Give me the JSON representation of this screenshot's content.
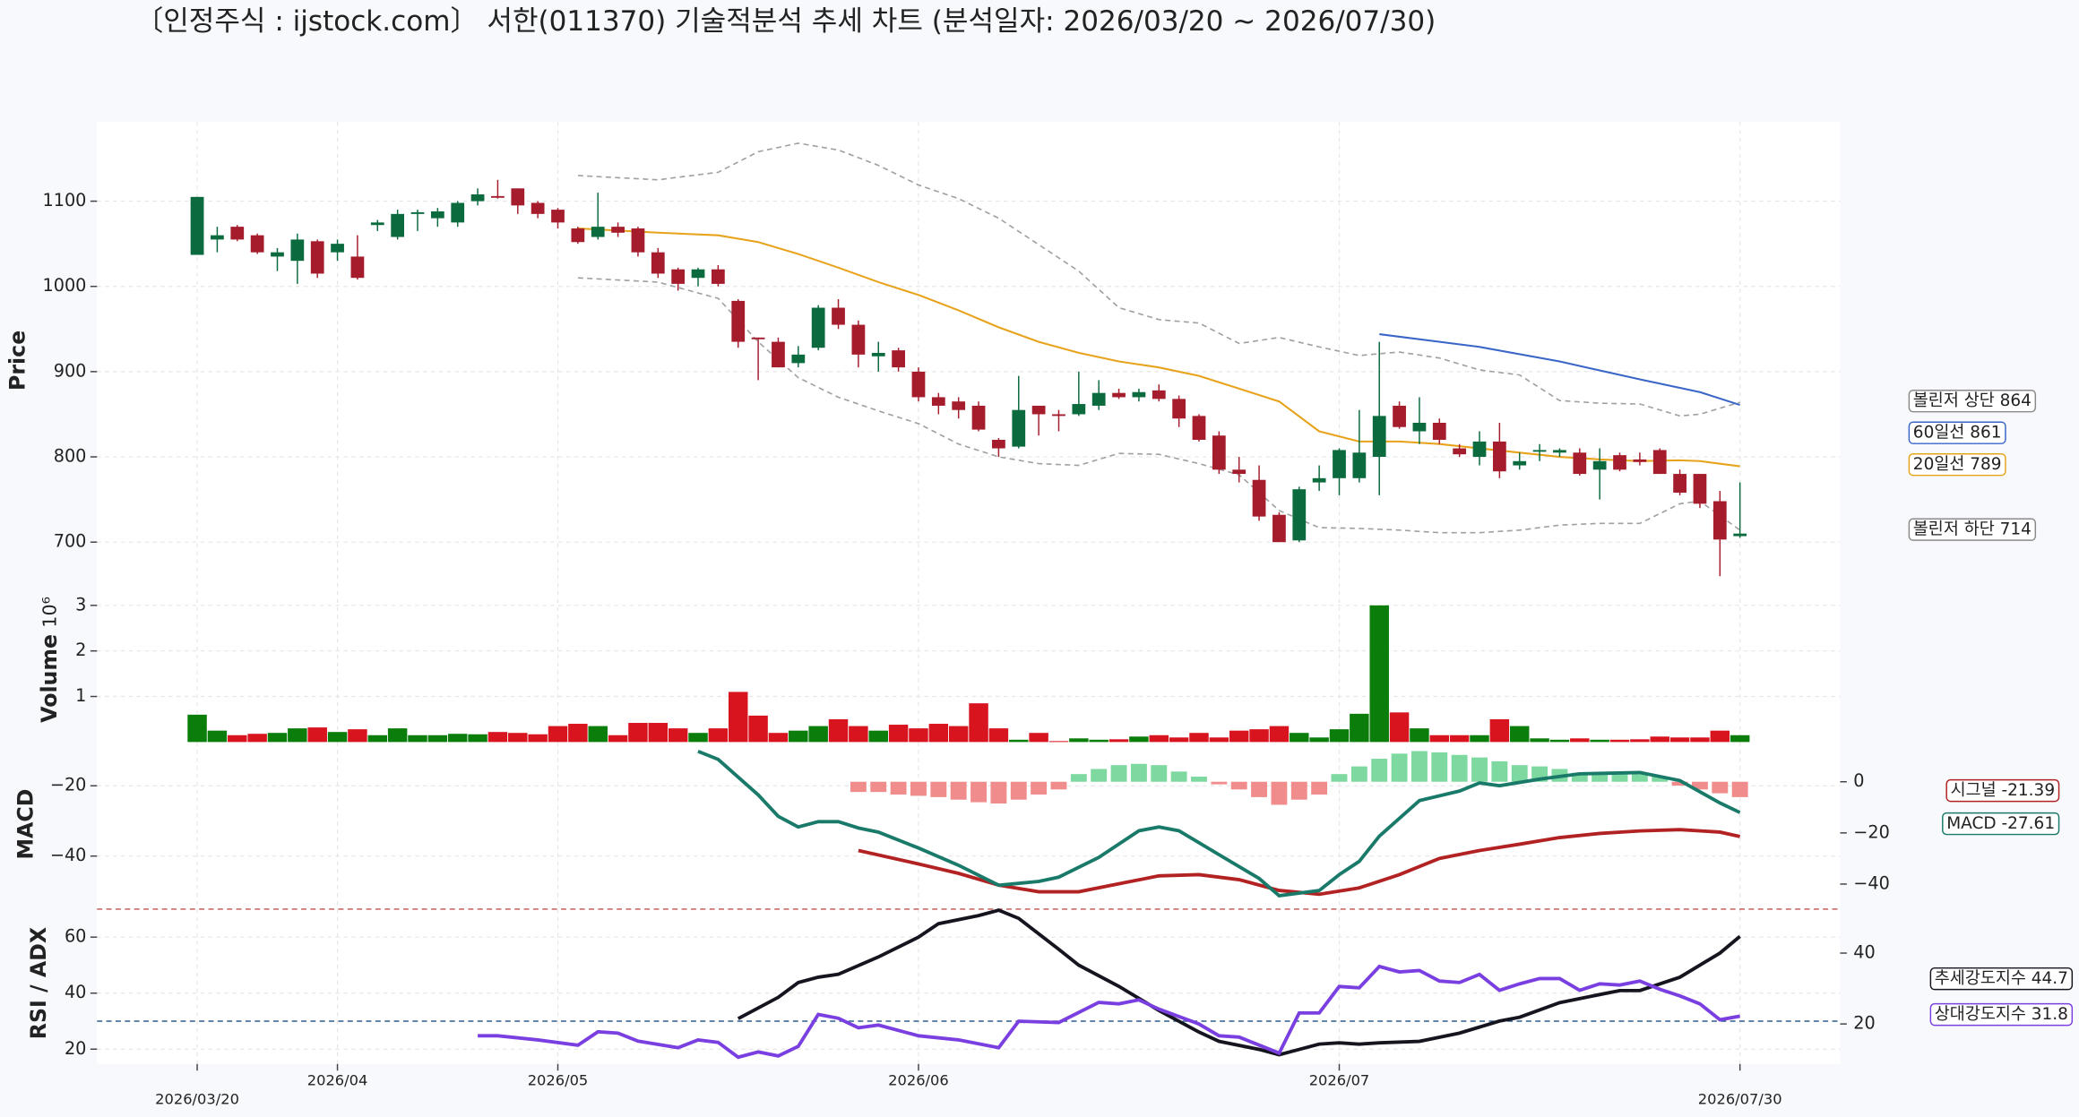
{
  "chart_data": {
    "type": "candlestick",
    "title": "〔인정주식 : ijstock.com〕 서한(011370) 기술적분석 추세 차트 (분석일자: 2026/03/20 ~ 2026/07/30)",
    "xlim": [
      -5,
      82
    ],
    "xticks": [
      {
        "value": 0,
        "label": "2026/03/20"
      },
      {
        "value": 7,
        "label": "2026/04"
      },
      {
        "value": 18,
        "label": "2026/05"
      },
      {
        "value": 36,
        "label": "2026/06"
      },
      {
        "value": 57,
        "label": "2026/07"
      },
      {
        "value": 77,
        "label": "2026/07/30"
      }
    ],
    "grid": true,
    "price": {
      "ylabel": "Price",
      "ylim": [
        652,
        1193
      ],
      "yticks": [
        700,
        800,
        900,
        1000,
        1100
      ],
      "up_color": "#0b6b3e",
      "down_color": "#a51d2d",
      "open": [
        1037,
        1055,
        1070,
        1060,
        1035,
        1030,
        1053,
        1040,
        1035,
        1072,
        1058,
        1085,
        1080,
        1075,
        1100,
        1106,
        1115,
        1098,
        1090,
        1068,
        1058,
        1070,
        1068,
        1040,
        1020,
        1010,
        1020,
        983,
        940,
        935,
        910,
        928,
        975,
        955,
        918,
        925,
        900,
        870,
        865,
        860,
        820,
        812,
        860,
        850,
        850,
        860,
        875,
        870,
        878,
        868,
        848,
        825,
        785,
        773,
        732,
        702,
        770,
        775,
        775,
        800,
        860,
        830,
        840,
        810,
        800,
        818,
        790,
        806,
        805,
        805,
        785,
        802,
        797,
        808,
        780,
        780,
        748,
        707
      ],
      "high": [
        1105,
        1070,
        1072,
        1062,
        1045,
        1062,
        1055,
        1055,
        1060,
        1078,
        1090,
        1090,
        1092,
        1100,
        1115,
        1125,
        1115,
        1100,
        1092,
        1070,
        1110,
        1075,
        1070,
        1045,
        1022,
        1022,
        1025,
        985,
        940,
        940,
        930,
        978,
        985,
        960,
        935,
        928,
        905,
        875,
        870,
        865,
        822,
        895,
        860,
        855,
        900,
        890,
        880,
        880,
        885,
        872,
        850,
        830,
        800,
        790,
        735,
        765,
        790,
        810,
        855,
        935,
        865,
        870,
        845,
        815,
        830,
        840,
        805,
        815,
        810,
        810,
        810,
        805,
        805,
        810,
        785,
        780,
        760,
        770
      ],
      "low": [
        1037,
        1040,
        1053,
        1038,
        1018,
        1003,
        1010,
        1030,
        1008,
        1065,
        1055,
        1065,
        1070,
        1070,
        1095,
        1103,
        1085,
        1080,
        1068,
        1050,
        1055,
        1058,
        1035,
        1010,
        995,
        1000,
        1000,
        928,
        890,
        905,
        905,
        925,
        950,
        905,
        900,
        900,
        865,
        850,
        845,
        830,
        800,
        810,
        825,
        830,
        848,
        855,
        868,
        865,
        865,
        835,
        818,
        780,
        770,
        725,
        700,
        700,
        760,
        755,
        770,
        755,
        833,
        815,
        815,
        800,
        790,
        775,
        785,
        795,
        800,
        778,
        750,
        783,
        790,
        780,
        755,
        740,
        660,
        705
      ],
      "close": [
        1105,
        1060,
        1055,
        1040,
        1040,
        1055,
        1015,
        1050,
        1010,
        1075,
        1085,
        1087,
        1088,
        1098,
        1108,
        1104,
        1095,
        1085,
        1075,
        1052,
        1070,
        1063,
        1040,
        1015,
        1003,
        1020,
        1003,
        935,
        938,
        905,
        920,
        975,
        955,
        920,
        922,
        905,
        870,
        860,
        855,
        832,
        810,
        855,
        850,
        848,
        862,
        875,
        870,
        876,
        868,
        845,
        820,
        785,
        780,
        730,
        700,
        762,
        775,
        808,
        805,
        848,
        835,
        840,
        820,
        803,
        818,
        783,
        795,
        808,
        808,
        780,
        795,
        785,
        794,
        780,
        758,
        745,
        703,
        710
      ],
      "overlays": [
        {
          "label": "볼린저 상단 864",
          "color": "#a0a0a0",
          "dashed": true,
          "x": [
            19,
            23,
            26,
            28,
            30,
            32,
            34,
            36,
            38,
            40,
            42,
            44,
            46,
            48,
            50,
            52,
            54,
            56,
            58,
            60,
            62,
            64,
            66,
            68,
            70,
            72,
            74,
            75,
            77
          ],
          "values": [
            1130,
            1125,
            1134,
            1158,
            1168,
            1160,
            1142,
            1119,
            1103,
            1080,
            1049,
            1018,
            975,
            961,
            957,
            933,
            940,
            929,
            919,
            923,
            916,
            902,
            896,
            866,
            863,
            862,
            848,
            850,
            864
          ]
        },
        {
          "label": "60일선 861",
          "color": "#3a66c8",
          "dashed": false,
          "x": [
            59,
            64,
            68,
            72,
            75,
            77
          ],
          "values": [
            944,
            929,
            912,
            891,
            876,
            861
          ]
        },
        {
          "label": "20일선 789",
          "color": "#e8a31c",
          "dashed": false,
          "x": [
            19,
            23,
            26,
            28,
            30,
            32,
            34,
            36,
            38,
            40,
            42,
            44,
            46,
            48,
            50,
            52,
            54,
            56,
            58,
            60,
            62,
            64,
            66,
            68,
            70,
            72,
            74,
            75,
            77
          ],
          "values": [
            1068,
            1063,
            1060,
            1052,
            1038,
            1022,
            1005,
            990,
            972,
            952,
            935,
            922,
            912,
            905,
            895,
            880,
            865,
            830,
            818,
            818,
            815,
            810,
            805,
            800,
            797,
            795,
            796,
            795,
            789
          ]
        },
        {
          "label": "볼린저 하단 714",
          "color": "#a0a0a0",
          "dashed": true,
          "x": [
            19,
            23,
            26,
            28,
            30,
            32,
            34,
            36,
            38,
            40,
            42,
            44,
            46,
            48,
            50,
            52,
            54,
            56,
            58,
            60,
            62,
            64,
            66,
            68,
            70,
            72,
            74,
            75,
            77
          ],
          "values": [
            1010,
            1005,
            986,
            935,
            893,
            870,
            854,
            839,
            815,
            800,
            792,
            790,
            804,
            803,
            792,
            779,
            737,
            717,
            716,
            714,
            711,
            711,
            714,
            720,
            722,
            722,
            745,
            748,
            714
          ]
        }
      ]
    },
    "volume": {
      "ylabel": "Volume",
      "offset_label": "10⁶",
      "ylim": [
        0,
        3.2
      ],
      "yticks": [
        1,
        2,
        3
      ],
      "up_color": "#0a7d0a",
      "down_color": "#d8141e",
      "values": [
        0.6,
        0.25,
        0.15,
        0.18,
        0.2,
        0.3,
        0.32,
        0.22,
        0.28,
        0.15,
        0.3,
        0.15,
        0.15,
        0.18,
        0.17,
        0.22,
        0.2,
        0.17,
        0.35,
        0.4,
        0.35,
        0.15,
        0.42,
        0.42,
        0.3,
        0.2,
        0.3,
        1.1,
        0.58,
        0.2,
        0.25,
        0.35,
        0.5,
        0.35,
        0.25,
        0.38,
        0.3,
        0.4,
        0.35,
        0.85,
        0.3,
        0.05,
        0.2,
        0.02,
        0.08,
        0.05,
        0.06,
        0.12,
        0.15,
        0.1,
        0.2,
        0.1,
        0.25,
        0.28,
        0.35,
        0.2,
        0.1,
        0.28,
        0.62,
        3.0,
        0.65,
        0.3,
        0.15,
        0.15,
        0.15,
        0.5,
        0.35,
        0.08,
        0.05,
        0.08,
        0.05,
        0.05,
        0.06,
        0.12,
        0.1,
        0.1,
        0.25,
        0.15
      ]
    },
    "macd": {
      "ylabel": "MACD",
      "ylim": [
        -54.3,
        -8.3
      ],
      "yticks": [
        {
          "value": -20,
          "label": "−20"
        },
        {
          "value": -40,
          "label": "−40"
        }
      ],
      "y2lim": [
        -48.7,
        14.5
      ],
      "y2ticks": [
        0,
        {
          "value": -20,
          "label": "−20"
        },
        {
          "value": -40,
          "label": "−40"
        }
      ],
      "series": [
        {
          "label": "시그널 -21.39",
          "color": "#b22222",
          "axis": "y2",
          "x": [
            33,
            36,
            38,
            40,
            42,
            44,
            46,
            48,
            50,
            52,
            54,
            56,
            58,
            60,
            62,
            64,
            66,
            68,
            70,
            72,
            74,
            76,
            77
          ],
          "values": [
            -26.9,
            -32.1,
            -35.8,
            -40.4,
            -43,
            -43,
            -39.9,
            -36.8,
            -36.3,
            -38.3,
            -42.5,
            -44,
            -41.5,
            -36.3,
            -30,
            -26.9,
            -24.4,
            -21.8,
            -20.2,
            -19.2,
            -18.7,
            -19.7,
            -21.39
          ]
        },
        {
          "label": "MACD -27.61",
          "color": "#1a7a6a",
          "axis": "y",
          "x": [
            25,
            26,
            28,
            29,
            30,
            31,
            32,
            33,
            34,
            36,
            38,
            40,
            42,
            43,
            45,
            47,
            48,
            49,
            51,
            53,
            54,
            56,
            57,
            58,
            59,
            61,
            63,
            64,
            65,
            67,
            69,
            72,
            74,
            76,
            77
          ],
          "values": [
            -10.2,
            -12.5,
            -22.6,
            -28.7,
            -31.7,
            -30.2,
            -30.2,
            -32,
            -33.2,
            -37.7,
            -42.6,
            -48.3,
            -47.2,
            -46,
            -40.4,
            -32.8,
            -31.7,
            -32.8,
            -39.6,
            -46.4,
            -51.3,
            -49.8,
            -45.3,
            -41.5,
            -34.3,
            -24.2,
            -21.5,
            -19.2,
            -20,
            -18.1,
            -16.6,
            -16.2,
            -18.5,
            -24.9,
            -27.61
          ]
        }
      ],
      "histogram": {
        "axis": "y2",
        "pos_color": "#7ed9a0",
        "neg_color": "#f08c8c",
        "x": [
          33,
          34,
          35,
          36,
          37,
          38,
          39,
          40,
          41,
          42,
          43,
          44,
          45,
          46,
          47,
          48,
          49,
          50,
          51,
          52,
          53,
          54,
          55,
          56,
          57,
          58,
          59,
          60,
          61,
          62,
          63,
          64,
          65,
          66,
          67,
          68,
          69,
          70,
          71,
          72,
          73,
          74,
          75,
          76,
          77
        ],
        "values": [
          -4,
          -4,
          -5,
          -5.5,
          -6,
          -7,
          -8,
          -8.5,
          -7,
          -5,
          -3,
          3,
          5,
          6.5,
          7,
          6.5,
          4,
          2,
          -1,
          -3,
          -6,
          -9,
          -7,
          -5,
          3,
          6,
          9,
          11,
          12,
          11.5,
          10.5,
          9.5,
          8,
          6.5,
          6,
          5,
          3.5,
          3.5,
          3,
          3,
          2,
          -1.5,
          -3,
          -4.5,
          -6
        ]
      }
    },
    "rsi": {
      "ylabel": "RSI / ADX",
      "ylim": [
        14.7,
        71
      ],
      "yticks": [
        20,
        40,
        60
      ],
      "y2lim": [
        8.7,
        53.2
      ],
      "y2ticks": [
        20,
        40
      ],
      "hlines": [
        {
          "value": 70,
          "color": "#c0504d"
        },
        {
          "value": 30,
          "color": "#2f5f8f"
        }
      ],
      "series": [
        {
          "label": "추세강도지수 44.7",
          "color": "#15151f",
          "axis": "y2",
          "x": [
            27,
            29,
            30,
            31,
            32,
            34,
            36,
            37,
            39,
            40,
            41,
            43,
            44,
            46,
            48,
            50,
            51,
            53,
            54,
            55,
            56,
            57,
            58,
            59,
            61,
            63,
            65,
            66,
            68,
            70,
            71,
            72,
            74,
            76,
            77
          ],
          "values": [
            21.5,
            27.5,
            31.7,
            33.2,
            34,
            38.9,
            44.5,
            48.3,
            50.6,
            52.1,
            49.8,
            41.1,
            36.6,
            30.6,
            23.8,
            17.7,
            15.1,
            12.8,
            11.3,
            12.8,
            14.3,
            14.7,
            14.3,
            14.7,
            15.1,
            17.4,
            20.8,
            21.9,
            26,
            28.3,
            29.4,
            29.4,
            33.2,
            40,
            44.7
          ]
        },
        {
          "label": "상대강도지수 31.8",
          "color": "#7a3fe0",
          "axis": "y",
          "x": [
            14,
            15,
            17,
            19,
            20,
            21,
            22,
            24,
            25,
            26,
            27,
            28,
            29,
            30,
            31,
            32,
            33,
            34,
            36,
            38,
            40,
            41,
            43,
            45,
            46,
            47,
            48,
            50,
            51,
            52,
            54,
            55,
            56,
            57,
            58,
            59,
            60,
            61,
            62,
            63,
            64,
            65,
            66,
            67,
            68,
            69,
            70,
            71,
            72,
            73,
            74,
            75,
            76,
            77
          ],
          "values": [
            24.8,
            24.8,
            23.3,
            21.4,
            26.2,
            25.7,
            22.9,
            20.5,
            23.3,
            22.4,
            17.1,
            19,
            17.6,
            21,
            32.4,
            31,
            27.6,
            28.6,
            24.8,
            23.3,
            20.5,
            30,
            29.5,
            36.7,
            36.2,
            37.6,
            34.3,
            29,
            24.8,
            24.3,
            18.6,
            32.9,
            32.9,
            42.4,
            41.9,
            49.5,
            47.6,
            48.1,
            44.3,
            43.8,
            46.7,
            41,
            43.3,
            45.2,
            45.2,
            41,
            43.3,
            42.9,
            44.3,
            41.4,
            39,
            36.2,
            30.5,
            31.8
          ]
        }
      ]
    }
  }
}
